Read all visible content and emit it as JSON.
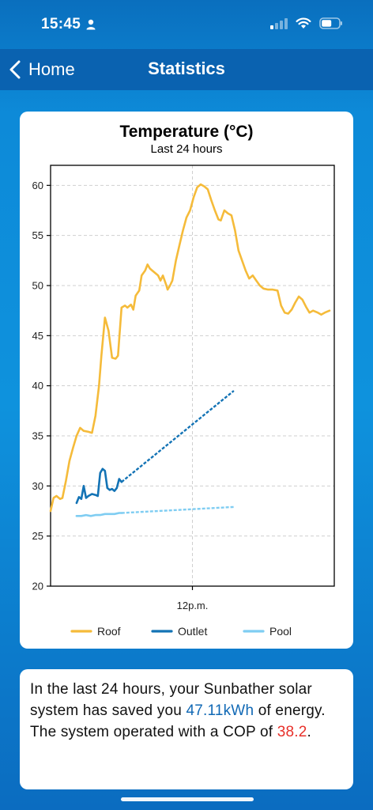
{
  "status_bar": {
    "time": "15:45"
  },
  "nav": {
    "back_label": "Home",
    "title": "Statistics"
  },
  "chart_data": {
    "type": "line",
    "title": "Temperature (°C)",
    "subtitle": "Last 24 hours",
    "xlabel": "",
    "ylabel": "",
    "ylim": [
      20,
      62
    ],
    "y_ticks": [
      20,
      25,
      30,
      35,
      40,
      45,
      50,
      55,
      60
    ],
    "x_range": [
      0,
      24
    ],
    "x_ticks": [
      {
        "x": 12,
        "label": "12p.m."
      }
    ],
    "grid": true,
    "legend_position": "bottom",
    "series": [
      {
        "name": "Roof",
        "color": "#f5bb3a",
        "points": [
          [
            0,
            27.5
          ],
          [
            0.25,
            28.8
          ],
          [
            0.5,
            29
          ],
          [
            0.8,
            28.7
          ],
          [
            1.0,
            28.8
          ],
          [
            1.3,
            30.5
          ],
          [
            1.6,
            32.5
          ],
          [
            1.9,
            33.8
          ],
          [
            2.2,
            35
          ],
          [
            2.5,
            35.8
          ],
          [
            2.8,
            35.5
          ],
          [
            3.2,
            35.4
          ],
          [
            3.5,
            35.3
          ],
          [
            3.8,
            37
          ],
          [
            4.1,
            40
          ],
          [
            4.3,
            43
          ],
          [
            4.6,
            46.8
          ],
          [
            4.9,
            45.5
          ],
          [
            5.2,
            42.8
          ],
          [
            5.5,
            42.7
          ],
          [
            5.7,
            43
          ],
          [
            6.0,
            47.8
          ],
          [
            6.3,
            48
          ],
          [
            6.5,
            47.8
          ],
          [
            6.8,
            48.1
          ],
          [
            7.0,
            47.6
          ],
          [
            7.2,
            49
          ],
          [
            7.5,
            49.5
          ],
          [
            7.7,
            51
          ],
          [
            8.0,
            51.5
          ],
          [
            8.2,
            52.1
          ],
          [
            8.4,
            51.7
          ],
          [
            8.6,
            51.5
          ],
          [
            8.9,
            51.2
          ],
          [
            9.1,
            51
          ],
          [
            9.3,
            50.5
          ],
          [
            9.5,
            51
          ],
          [
            9.8,
            50
          ],
          [
            9.9,
            49.6
          ],
          [
            10.1,
            50
          ],
          [
            10.3,
            50.5
          ],
          [
            10.6,
            52.5
          ],
          [
            10.9,
            54
          ],
          [
            11.2,
            55.5
          ],
          [
            11.5,
            56.8
          ],
          [
            11.8,
            57.5
          ],
          [
            12.1,
            58.8
          ],
          [
            12.4,
            59.8
          ],
          [
            12.7,
            60.1
          ],
          [
            13.0,
            59.9
          ],
          [
            13.3,
            59.6
          ],
          [
            13.6,
            58.5
          ],
          [
            13.9,
            57.5
          ],
          [
            14.2,
            56.6
          ],
          [
            14.4,
            56.5
          ],
          [
            14.7,
            57.5
          ],
          [
            15.0,
            57.2
          ],
          [
            15.3,
            57
          ],
          [
            15.6,
            55.5
          ],
          [
            15.9,
            53.5
          ],
          [
            16.2,
            52.5
          ],
          [
            16.5,
            51.5
          ],
          [
            16.8,
            50.7
          ],
          [
            17.1,
            51
          ],
          [
            17.4,
            50.5
          ],
          [
            17.7,
            50
          ],
          [
            18.0,
            49.7
          ],
          [
            18.4,
            49.6
          ],
          [
            18.8,
            49.6
          ],
          [
            19.2,
            49.5
          ],
          [
            19.5,
            48
          ],
          [
            19.8,
            47.3
          ],
          [
            20.1,
            47.2
          ],
          [
            20.4,
            47.6
          ],
          [
            20.7,
            48.3
          ],
          [
            21.0,
            48.9
          ],
          [
            21.3,
            48.6
          ],
          [
            21.6,
            47.9
          ],
          [
            21.9,
            47.3
          ],
          [
            22.2,
            47.5
          ],
          [
            22.6,
            47.3
          ],
          [
            22.9,
            47.1
          ],
          [
            23.2,
            47.3
          ],
          [
            23.6,
            47.5
          ]
        ]
      },
      {
        "name": "Outlet",
        "color": "#1373b5",
        "points": [
          [
            2.2,
            28.3
          ],
          [
            2.4,
            28.9
          ],
          [
            2.6,
            28.7
          ],
          [
            2.8,
            30
          ],
          [
            3.0,
            28.8
          ],
          [
            3.2,
            29
          ],
          [
            3.5,
            29.2
          ],
          [
            3.8,
            29.1
          ],
          [
            4.0,
            29
          ],
          [
            4.2,
            31.3
          ],
          [
            4.4,
            31.7
          ],
          [
            4.6,
            31.5
          ],
          [
            4.8,
            29.8
          ],
          [
            5.0,
            29.6
          ],
          [
            5.2,
            29.7
          ],
          [
            5.4,
            29.5
          ],
          [
            5.6,
            29.8
          ],
          [
            5.8,
            30.7
          ],
          [
            6.0,
            30.4
          ]
        ],
        "projection": [
          [
            6.0,
            30.4
          ],
          [
            15.5,
            39.5
          ]
        ]
      },
      {
        "name": "Pool",
        "color": "#7fcdf2",
        "points": [
          [
            2.2,
            27
          ],
          [
            2.6,
            27
          ],
          [
            3.0,
            27.1
          ],
          [
            3.4,
            27
          ],
          [
            3.8,
            27.1
          ],
          [
            4.2,
            27.1
          ],
          [
            4.6,
            27.2
          ],
          [
            5.0,
            27.2
          ],
          [
            5.4,
            27.2
          ],
          [
            5.8,
            27.3
          ],
          [
            6.0,
            27.3
          ]
        ],
        "projection": [
          [
            6.0,
            27.3
          ],
          [
            15.5,
            27.9
          ]
        ]
      }
    ]
  },
  "summary": {
    "before": "In the last 24 hours, your Sunbather solar system has saved you ",
    "energy": "47.11kWh",
    "middle": " of energy. The system operated with a COP of ",
    "cop": "38.2",
    "after": "."
  }
}
